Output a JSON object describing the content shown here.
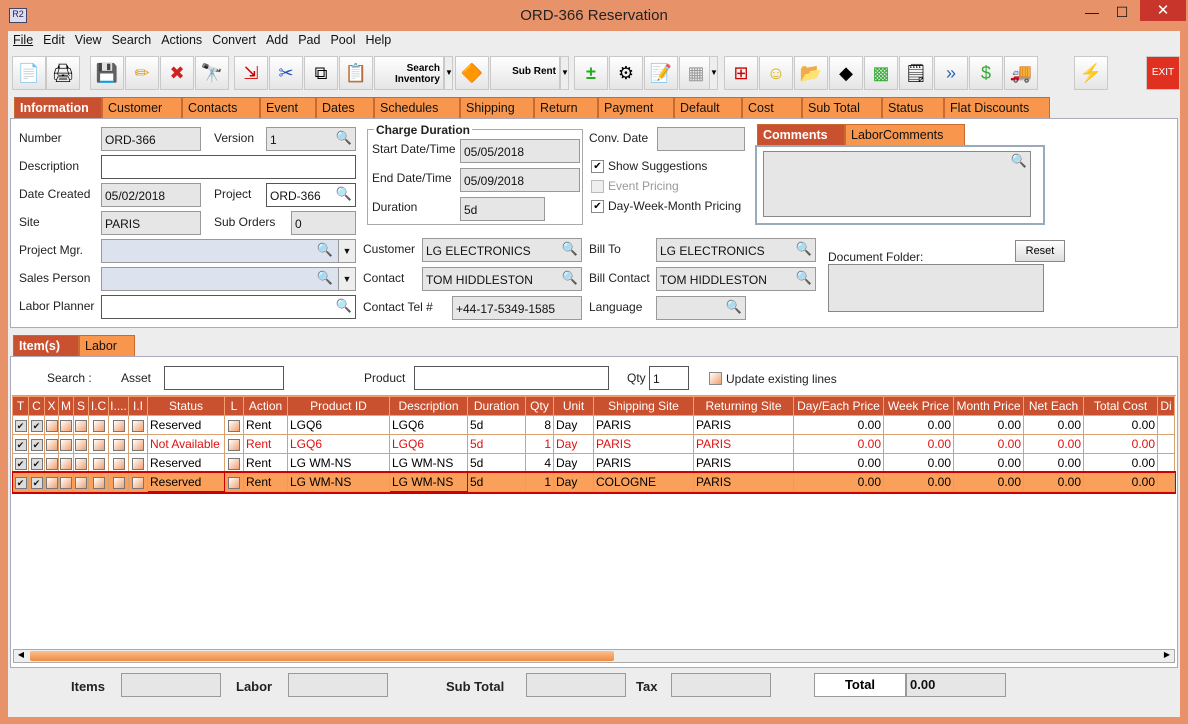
{
  "window": {
    "title": "ORD-366 Reservation",
    "app_icon": "R2",
    "minimize": "—",
    "maximize": "☐",
    "close": "✕"
  },
  "menu": [
    "File",
    "Edit",
    "View",
    "Search",
    "Actions",
    "Convert",
    "Add",
    "Pad",
    "Pool",
    "Help"
  ],
  "toolbar": {
    "search_inventory": "Search Inventory",
    "sub_rent": "Sub Rent",
    "exit": "EXIT"
  },
  "tabs": [
    "Information",
    "Customer",
    "Contacts",
    "Event",
    "Dates",
    "Schedules",
    "Shipping",
    "Return",
    "Payment",
    "Default",
    "Cost",
    "Sub Total",
    "Status",
    "Flat Discounts"
  ],
  "info": {
    "number_label": "Number",
    "number": "ORD-366",
    "version_label": "Version",
    "version": "1",
    "description_label": "Description",
    "description": "",
    "date_created_label": "Date Created",
    "date_created": "05/02/2018",
    "project_label": "Project",
    "project": "ORD-366",
    "site_label": "Site",
    "site": "PARIS",
    "sub_orders_label": "Sub Orders",
    "sub_orders": "0",
    "project_mgr_label": "Project Mgr.",
    "project_mgr": "",
    "sales_person_label": "Sales Person",
    "sales_person": "",
    "labor_planner_label": "Labor Planner",
    "labor_planner": "",
    "charge_duration_title": "Charge Duration",
    "start_label": "Start Date/Time",
    "start": "05/05/2018",
    "end_label": "End Date/Time",
    "end": "05/09/2018",
    "duration_label": "Duration",
    "duration": "5d",
    "conv_date_label": "Conv. Date",
    "conv_date": "",
    "show_suggestions": "Show Suggestions",
    "event_pricing": "Event Pricing",
    "dwm_pricing": "Day-Week-Month Pricing",
    "customer_label": "Customer",
    "customer": "LG ELECTRONICS",
    "contact_label": "Contact",
    "contact": "TOM HIDDLESTON",
    "contact_tel_label": "Contact Tel #",
    "contact_tel": "+44-17-5349-1585",
    "bill_to_label": "Bill To",
    "bill_to": "LG ELECTRONICS",
    "bill_contact_label": "Bill Contact",
    "bill_contact": "TOM HIDDLESTON",
    "language_label": "Language",
    "language": "",
    "comment_tabs": [
      "Comments",
      "LaborComments"
    ],
    "comments": "",
    "document_folder_label": "Document Folder:",
    "reset": "Reset"
  },
  "lower_tabs": [
    "Item(s)",
    "Labor"
  ],
  "search": {
    "label": "Search :",
    "asset_label": "Asset",
    "asset": "",
    "product_label": "Product",
    "product": "",
    "qty_label": "Qty",
    "qty": "1",
    "update_existing": "Update existing lines"
  },
  "grid": {
    "headers": [
      "T",
      "C",
      "X",
      "M",
      "S",
      "I.C",
      "I....",
      "I.I",
      "Status",
      "L",
      "Action",
      "Product ID",
      "Description",
      "Duration",
      "Qty",
      "Unit",
      "Shipping Site",
      "Returning Site",
      "Day/Each Price",
      "Week Price",
      "Month Price",
      "Net Each",
      "Total Cost",
      "Di"
    ],
    "rows": [
      {
        "checks": [
          true,
          true,
          false,
          false,
          false,
          false,
          false,
          false
        ],
        "status": "Reserved",
        "action": "Rent",
        "product_id": "LGQ6",
        "description": "LGQ6",
        "duration": "5d",
        "qty": "8",
        "unit": "Day",
        "shipping": "PARIS",
        "returning": "PARIS",
        "day": "0.00",
        "week": "0.00",
        "month": "0.00",
        "net": "0.00",
        "total": "0.00",
        "state": "normal"
      },
      {
        "checks": [
          true,
          true,
          false,
          false,
          false,
          false,
          false,
          false
        ],
        "status": "Not Available",
        "action": "Rent",
        "product_id": "LGQ6",
        "description": "LGQ6",
        "duration": "5d",
        "qty": "1",
        "unit": "Day",
        "shipping": "PARIS",
        "returning": "PARIS",
        "day": "0.00",
        "week": "0.00",
        "month": "0.00",
        "net": "0.00",
        "total": "0.00",
        "state": "unavailable"
      },
      {
        "checks": [
          true,
          true,
          false,
          false,
          false,
          false,
          false,
          false
        ],
        "status": "Reserved",
        "action": "Rent",
        "product_id": "LG WM-NS",
        "description": "LG WM-NS",
        "duration": "5d",
        "qty": "4",
        "unit": "Day",
        "shipping": "PARIS",
        "returning": "PARIS",
        "day": "0.00",
        "week": "0.00",
        "month": "0.00",
        "net": "0.00",
        "total": "0.00",
        "state": "normal"
      },
      {
        "checks": [
          true,
          true,
          false,
          false,
          false,
          false,
          false,
          false
        ],
        "status": "Reserved",
        "action": "Rent",
        "product_id": "LG WM-NS",
        "description": "LG WM-NS",
        "duration": "5d",
        "qty": "1",
        "unit": "Day",
        "shipping": "COLOGNE",
        "returning": "PARIS",
        "day": "0.00",
        "week": "0.00",
        "month": "0.00",
        "net": "0.00",
        "total": "0.00",
        "state": "selected"
      }
    ]
  },
  "totals": {
    "items_label": "Items",
    "items": "",
    "labor_label": "Labor",
    "labor": "",
    "subtotal_label": "Sub Total",
    "subtotal": "",
    "tax_label": "Tax",
    "tax": "",
    "total_label": "Total",
    "total": "0.00"
  },
  "colors": {
    "accent": "#f7964c",
    "active_tab": "#c9512f",
    "selected_row": "#fba05a",
    "unavailable": "#e01010"
  }
}
